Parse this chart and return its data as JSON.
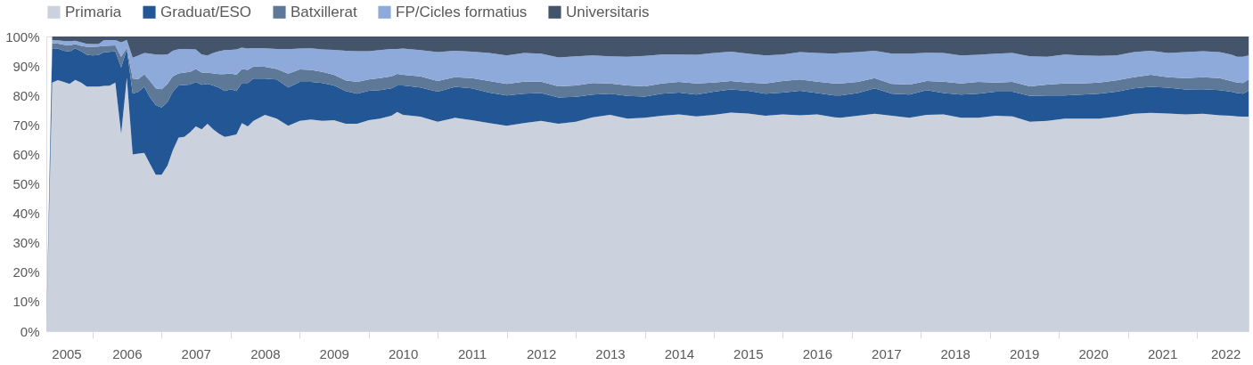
{
  "chart_data": {
    "type": "area",
    "stacked": true,
    "legend": "top",
    "x": [
      "2005-05",
      "2005-06",
      "2005-07",
      "2005-08",
      "2005-09",
      "2005-10",
      "2005-11",
      "2005-12",
      "2006-01",
      "2006-02",
      "2006-03",
      "2006-04",
      "2006-05",
      "2006-06",
      "2006-07",
      "2006-08",
      "2006-09",
      "2006-10",
      "2006-11",
      "2006-12",
      "2007-01",
      "2007-02",
      "2007-03",
      "2007-04",
      "2007-05",
      "2007-06",
      "2007-07",
      "2007-08",
      "2007-09",
      "2007-10",
      "2007-11",
      "2007-12",
      "2008-01",
      "2008-02",
      "2008-03",
      "2008-04",
      "2008-05",
      "2008-07",
      "2008-09",
      "2008-11",
      "2009-01",
      "2009-03",
      "2009-05",
      "2009-07",
      "2009-09",
      "2009-11",
      "2010-01",
      "2010-03",
      "2010-05",
      "2010-06",
      "2010-07",
      "2010-10",
      "2011-01",
      "2011-04",
      "2011-07",
      "2011-10",
      "2012-01",
      "2012-04",
      "2012-07",
      "2012-10",
      "2013-01",
      "2013-04",
      "2013-07",
      "2013-10",
      "2014-01",
      "2014-04",
      "2014-07",
      "2014-10",
      "2015-01",
      "2015-04",
      "2015-07",
      "2015-10",
      "2016-01",
      "2016-04",
      "2016-07",
      "2016-10",
      "2016-11",
      "2017-02",
      "2017-05",
      "2017-08",
      "2017-11",
      "2018-02",
      "2018-05",
      "2018-08",
      "2018-11",
      "2019-02",
      "2019-05",
      "2019-08",
      "2019-11",
      "2020-02",
      "2020-05",
      "2020-08",
      "2020-11",
      "2021-02",
      "2021-05",
      "2021-08",
      "2021-11",
      "2022-02",
      "2022-05",
      "2022-07",
      "2022-08",
      "2022-09",
      "2022-10"
    ],
    "xlim": [
      "2005-05",
      "2022-10"
    ],
    "xticks": [
      {
        "value": "2005-08-15",
        "label": "2005"
      },
      {
        "value": "2006-01",
        "label": null
      },
      {
        "value": "2006-07",
        "label": "2006"
      },
      {
        "value": "2007-01",
        "label": null
      },
      {
        "value": "2007-07",
        "label": "2007"
      },
      {
        "value": "2008-01",
        "label": null
      },
      {
        "value": "2008-07",
        "label": "2008"
      },
      {
        "value": "2009-01",
        "label": null
      },
      {
        "value": "2009-07",
        "label": "2009"
      },
      {
        "value": "2010-01",
        "label": null
      },
      {
        "value": "2010-07",
        "label": "2010"
      },
      {
        "value": "2011-01",
        "label": null
      },
      {
        "value": "2011-07",
        "label": "2011"
      },
      {
        "value": "2012-01",
        "label": null
      },
      {
        "value": "2012-07",
        "label": "2012"
      },
      {
        "value": "2013-01",
        "label": null
      },
      {
        "value": "2013-07",
        "label": "2013"
      },
      {
        "value": "2014-01",
        "label": null
      },
      {
        "value": "2014-07",
        "label": "2014"
      },
      {
        "value": "2015-01",
        "label": null
      },
      {
        "value": "2015-07",
        "label": "2015"
      },
      {
        "value": "2016-01",
        "label": null
      },
      {
        "value": "2016-07",
        "label": "2016"
      },
      {
        "value": "2017-01",
        "label": null
      },
      {
        "value": "2017-07",
        "label": "2017"
      },
      {
        "value": "2018-01",
        "label": null
      },
      {
        "value": "2018-07",
        "label": "2018"
      },
      {
        "value": "2019-01",
        "label": null
      },
      {
        "value": "2019-07",
        "label": "2019"
      },
      {
        "value": "2020-01",
        "label": null
      },
      {
        "value": "2020-07",
        "label": "2020"
      },
      {
        "value": "2021-01",
        "label": null
      },
      {
        "value": "2021-07",
        "label": "2021"
      },
      {
        "value": "2022-01",
        "label": null
      },
      {
        "value": "2022-06",
        "label": "2022"
      }
    ],
    "ylim": [
      0,
      100
    ],
    "yticks": [
      {
        "value": 0,
        "label": "0%"
      },
      {
        "value": 10,
        "label": "10%"
      },
      {
        "value": 20,
        "label": "20%"
      },
      {
        "value": 30,
        "label": "30%"
      },
      {
        "value": 40,
        "label": "40%"
      },
      {
        "value": 50,
        "label": "50%"
      },
      {
        "value": 60,
        "label": "60%"
      },
      {
        "value": 70,
        "label": "70%"
      },
      {
        "value": 80,
        "label": "80%"
      },
      {
        "value": 90,
        "label": "90%"
      },
      {
        "value": 100,
        "label": "100%"
      }
    ],
    "series": [
      {
        "name": "Primaria",
        "color": "#cbd2dd",
        "values": [
          0,
          84.4,
          85.2,
          84.6,
          83.9,
          85.3,
          84.4,
          83.0,
          83.0,
          83.0,
          83.2,
          83.3,
          84.4,
          67.0,
          86.0,
          60.0,
          60.3,
          60.5,
          56.7,
          53.1,
          53.1,
          56.2,
          61.3,
          65.7,
          65.9,
          67.5,
          69.5,
          68.5,
          70.4,
          68.5,
          67.0,
          65.9,
          66.3,
          66.8,
          70.6,
          69.5,
          71.4,
          73.4,
          72.1,
          69.7,
          71.4,
          71.8,
          71.4,
          71.6,
          70.4,
          70.4,
          71.6,
          72.1,
          73.1,
          74.4,
          73.4,
          72.8,
          71.1,
          72.4,
          71.6,
          70.6,
          69.7,
          70.6,
          71.4,
          70.4,
          71.1,
          72.6,
          73.4,
          72.1,
          72.4,
          73.1,
          73.6,
          72.9,
          73.4,
          74.2,
          73.9,
          73.1,
          73.6,
          73.3,
          73.6,
          72.6,
          72.4,
          73.1,
          73.8,
          73.1,
          72.4,
          73.4,
          73.6,
          72.4,
          72.4,
          73.1,
          72.9,
          71.1,
          71.4,
          72.1,
          72.1,
          72.1,
          72.8,
          73.8,
          74.1,
          73.9,
          73.6,
          73.8,
          73.3,
          73.1,
          72.9,
          72.8,
          72.8
        ]
      },
      {
        "name": "Graduat/ESO",
        "color": "#235694",
        "values": [
          0,
          11.6,
          10.7,
          10.6,
          11.0,
          10.7,
          10.6,
          10.8,
          10.6,
          10.7,
          11.4,
          11.5,
          10.6,
          22.5,
          9.7,
          20.6,
          21.0,
          22.4,
          22.6,
          23.6,
          22.8,
          21.5,
          20.0,
          17.7,
          17.6,
          16.2,
          15.1,
          15.1,
          13.5,
          14.9,
          15.6,
          15.6,
          15.8,
          14.7,
          13.6,
          14.7,
          14.3,
          12.3,
          13.3,
          13.0,
          13.2,
          12.8,
          12.8,
          11.8,
          11.1,
          10.2,
          10.0,
          9.7,
          9.3,
          9.0,
          10.0,
          9.9,
          10.2,
          10.5,
          10.8,
          10.4,
          10.3,
          10.0,
          9.4,
          8.9,
          8.4,
          7.7,
          7.2,
          7.7,
          7.2,
          7.5,
          7.4,
          7.4,
          7.9,
          7.8,
          7.7,
          7.5,
          7.4,
          8.3,
          7.2,
          7.4,
          7.6,
          7.7,
          8.6,
          7.5,
          7.9,
          8.4,
          7.2,
          7.9,
          8.2,
          8.2,
          8.4,
          8.7,
          8.6,
          7.9,
          8.2,
          8.5,
          8.5,
          8.6,
          8.8,
          8.7,
          8.4,
          8.3,
          8.5,
          8.2,
          7.9,
          7.8,
          8.8
        ]
      },
      {
        "name": "Batxillerat",
        "color": "#5e7898",
        "values": [
          0,
          1.7,
          1.7,
          2.0,
          2.1,
          1.4,
          1.8,
          2.7,
          2.9,
          2.9,
          2.2,
          2.1,
          2.0,
          3.6,
          0.5,
          5.1,
          4.3,
          4.3,
          5.6,
          5.7,
          6.2,
          6.2,
          5.2,
          4.1,
          4.3,
          4.3,
          4.4,
          4.2,
          3.9,
          4.1,
          4.6,
          5.7,
          5.4,
          5.5,
          4.8,
          4.5,
          4.1,
          4.0,
          3.6,
          4.7,
          4.2,
          4.1,
          3.8,
          3.6,
          3.6,
          4.0,
          3.8,
          4.1,
          4.1,
          3.9,
          3.6,
          3.8,
          3.6,
          3.3,
          3.5,
          3.9,
          3.9,
          4.1,
          3.9,
          3.8,
          3.9,
          3.9,
          3.5,
          3.6,
          3.5,
          3.5,
          3.6,
          3.8,
          3.1,
          2.9,
          2.8,
          3.5,
          3.9,
          3.8,
          3.9,
          4.1,
          4.1,
          3.8,
          3.5,
          3.3,
          3.4,
          3.1,
          3.9,
          3.8,
          4.0,
          3.1,
          3.3,
          3.3,
          3.7,
          4.1,
          3.8,
          3.8,
          3.8,
          3.8,
          4.1,
          3.6,
          3.9,
          4.1,
          4.1,
          3.6,
          3.6,
          3.6,
          3.8
        ]
      },
      {
        "name": "FP/Cicles formatius",
        "color": "#8eaadb",
        "values": [
          0,
          1.1,
          1.1,
          1.3,
          1.4,
          1.2,
          1.2,
          1.0,
          0.9,
          0.8,
          1.9,
          1.9,
          1.8,
          4.9,
          2.6,
          7.1,
          8.0,
          7.2,
          9.3,
          11.5,
          11.7,
          10.0,
          8.7,
          8.2,
          8.0,
          7.7,
          6.6,
          6.1,
          5.8,
          6.9,
          7.8,
          8.2,
          8.0,
          8.6,
          7.2,
          7.2,
          6.3,
          6.3,
          6.8,
          8.3,
          7.1,
          7.3,
          7.6,
          8.5,
          10.1,
          10.4,
          9.6,
          9.5,
          9.3,
          8.5,
          8.9,
          8.9,
          9.8,
          9.0,
          9.0,
          9.5,
          9.7,
          9.7,
          9.5,
          9.8,
          9.9,
          9.4,
          9.2,
          9.7,
          10.3,
          9.8,
          9.3,
          9.7,
          10.0,
          10.0,
          9.8,
          9.5,
          9.0,
          9.3,
          9.7,
          10.1,
          10.3,
          10.1,
          9.3,
          10.3,
          10.5,
          9.6,
          9.7,
          9.5,
          9.2,
          9.8,
          9.8,
          10.2,
          9.4,
          9.8,
          9.5,
          9.0,
          8.5,
          8.5,
          8.2,
          8.2,
          8.8,
          8.8,
          8.8,
          9.0,
          8.7,
          8.9,
          8.2
        ]
      },
      {
        "name": "Universitaris",
        "color": "#44546a",
        "values": [
          0,
          1.2,
          1.3,
          1.5,
          1.6,
          1.4,
          2.0,
          2.5,
          2.6,
          2.6,
          1.3,
          1.2,
          1.2,
          2.0,
          1.2,
          7.2,
          6.4,
          5.6,
          5.8,
          6.1,
          6.2,
          6.1,
          4.8,
          4.3,
          4.2,
          4.3,
          4.4,
          6.1,
          6.4,
          5.6,
          5.0,
          4.6,
          4.5,
          4.4,
          3.8,
          4.1,
          3.9,
          4.0,
          4.2,
          4.3,
          4.1,
          4.0,
          4.4,
          4.5,
          4.8,
          5.0,
          5.0,
          4.6,
          4.2,
          4.2,
          4.1,
          4.6,
          5.3,
          4.8,
          5.1,
          5.6,
          6.4,
          5.6,
          5.8,
          7.1,
          6.7,
          6.4,
          6.7,
          6.9,
          6.6,
          6.1,
          6.1,
          6.2,
          5.6,
          5.1,
          5.8,
          6.4,
          6.1,
          5.3,
          5.6,
          5.8,
          5.6,
          5.3,
          4.8,
          5.8,
          5.8,
          5.5,
          5.6,
          6.4,
          6.2,
          5.8,
          5.6,
          6.7,
          6.9,
          6.1,
          6.4,
          6.6,
          6.4,
          5.3,
          4.8,
          5.6,
          5.3,
          5.0,
          5.3,
          6.1,
          6.9,
          6.9,
          6.4
        ]
      }
    ]
  }
}
